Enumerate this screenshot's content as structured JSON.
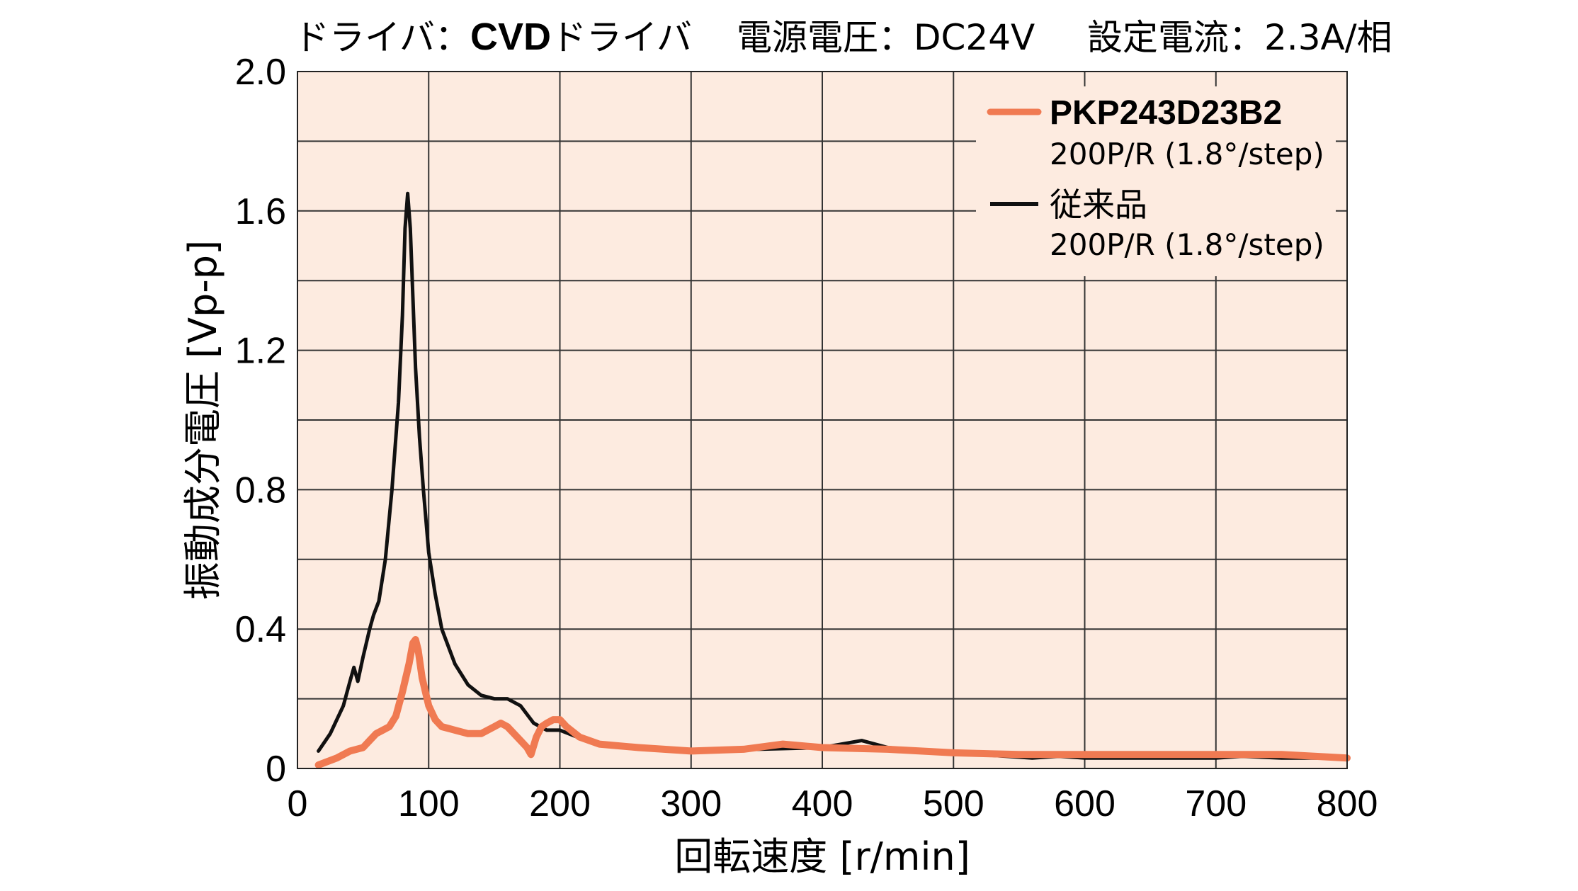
{
  "header": {
    "driver_label": "ドライバ：",
    "driver_bold": "CVD",
    "driver_suffix": "ドライバ",
    "voltage": "電源電圧：DC24V",
    "current": "設定電流：2.3A/相"
  },
  "chart_data": {
    "type": "line",
    "xlabel": "回転速度 [r/min]",
    "ylabel": "振動成分電圧 [Vp-p]",
    "xlim": [
      0,
      800
    ],
    "ylim": [
      0,
      2.0
    ],
    "x_ticks": [
      0,
      100,
      200,
      300,
      400,
      500,
      600,
      700,
      800
    ],
    "y_ticks": [
      0,
      0.4,
      0.8,
      1.2,
      1.6,
      2.0
    ],
    "x_tick_labels": [
      "0",
      "100",
      "200",
      "300",
      "400",
      "500",
      "600",
      "700",
      "800"
    ],
    "y_tick_labels": [
      "0",
      "0.4",
      "0.8",
      "1.2",
      "1.6",
      "2.0"
    ],
    "grid": true,
    "legend": "top-right",
    "series": [
      {
        "name": "従来品",
        "sub": "200P/R (1.8°/step)",
        "color": "#111111",
        "x": [
          16,
          25,
          35,
          40,
          43,
          46,
          50,
          55,
          58,
          62,
          67,
          72,
          77,
          80,
          82,
          84,
          86,
          88,
          90,
          93,
          96,
          100,
          105,
          110,
          120,
          130,
          140,
          150,
          160,
          170,
          180,
          190,
          200,
          220,
          250,
          300,
          350,
          400,
          430,
          450,
          480,
          500,
          520,
          540,
          560,
          580,
          600,
          620,
          650,
          680,
          700,
          720,
          750,
          780,
          800
        ],
        "y": [
          0.05,
          0.1,
          0.18,
          0.25,
          0.29,
          0.25,
          0.32,
          0.4,
          0.44,
          0.48,
          0.6,
          0.8,
          1.05,
          1.3,
          1.55,
          1.65,
          1.55,
          1.35,
          1.15,
          0.95,
          0.8,
          0.62,
          0.5,
          0.4,
          0.3,
          0.24,
          0.21,
          0.2,
          0.2,
          0.18,
          0.13,
          0.11,
          0.11,
          0.08,
          0.06,
          0.05,
          0.055,
          0.06,
          0.08,
          0.06,
          0.05,
          0.04,
          0.04,
          0.035,
          0.03,
          0.035,
          0.03,
          0.03,
          0.03,
          0.03,
          0.03,
          0.035,
          0.03,
          0.03,
          0.03
        ]
      },
      {
        "name": "PKP243D23B2",
        "sub": "200P/R (1.8°/step)",
        "color": "#f07a52",
        "x": [
          16,
          30,
          40,
          50,
          55,
          60,
          65,
          70,
          75,
          80,
          85,
          88,
          90,
          92,
          95,
          100,
          105,
          110,
          120,
          130,
          140,
          150,
          155,
          160,
          165,
          170,
          175,
          178,
          182,
          186,
          190,
          195,
          200,
          205,
          215,
          230,
          260,
          300,
          340,
          370,
          400,
          450,
          500,
          550,
          600,
          650,
          700,
          750,
          800
        ],
        "y": [
          0.01,
          0.03,
          0.05,
          0.06,
          0.08,
          0.1,
          0.11,
          0.12,
          0.15,
          0.22,
          0.3,
          0.36,
          0.37,
          0.34,
          0.26,
          0.18,
          0.14,
          0.12,
          0.11,
          0.1,
          0.1,
          0.12,
          0.13,
          0.12,
          0.1,
          0.08,
          0.06,
          0.04,
          0.09,
          0.12,
          0.13,
          0.14,
          0.14,
          0.12,
          0.09,
          0.07,
          0.06,
          0.05,
          0.055,
          0.07,
          0.06,
          0.055,
          0.045,
          0.04,
          0.04,
          0.04,
          0.04,
          0.04,
          0.03
        ]
      }
    ]
  }
}
